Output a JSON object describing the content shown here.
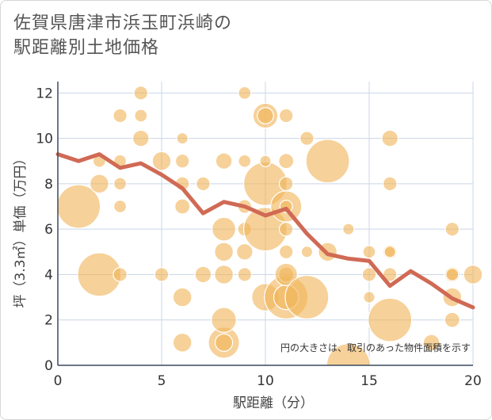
{
  "chart_data": {
    "type": "scatter",
    "title_lines": [
      "佐賀県唐津市浜玉町浜崎の",
      "駅距離別土地価格"
    ],
    "xlabel": "駅距離（分）",
    "ylabel": "坪（3.3㎡）単価（万円）",
    "note": "円の大きさは、取引のあった物件面積を示す",
    "xlim": [
      0,
      20
    ],
    "ylim": [
      0,
      12.5
    ],
    "x_ticks": [
      "0",
      "5",
      "10",
      "15",
      "20"
    ],
    "y_ticks": [
      "0",
      "2",
      "4",
      "6",
      "8",
      "10",
      "12"
    ],
    "grid": true,
    "colors": {
      "bubble": "#f0b55a",
      "line": "#d06a55",
      "grid": "#c9d7e6"
    },
    "bubbles": [
      {
        "x": 1,
        "y": 7,
        "s": 3
      },
      {
        "x": 2,
        "y": 4,
        "s": 3
      },
      {
        "x": 2,
        "y": 8,
        "s": 1
      },
      {
        "x": 2,
        "y": 9,
        "s": 0.5
      },
      {
        "x": 3,
        "y": 4,
        "s": 0.6
      },
      {
        "x": 3,
        "y": 7,
        "s": 0.5
      },
      {
        "x": 3,
        "y": 8,
        "s": 0.5
      },
      {
        "x": 3,
        "y": 9,
        "s": 0.5
      },
      {
        "x": 3,
        "y": 11,
        "s": 0.6
      },
      {
        "x": 4,
        "y": 10,
        "s": 0.8
      },
      {
        "x": 4,
        "y": 11,
        "s": 0.5
      },
      {
        "x": 4,
        "y": 12,
        "s": 0.6
      },
      {
        "x": 5,
        "y": 4,
        "s": 0.6
      },
      {
        "x": 5,
        "y": 9,
        "s": 1
      },
      {
        "x": 6,
        "y": 1,
        "s": 1
      },
      {
        "x": 6,
        "y": 3,
        "s": 1
      },
      {
        "x": 6,
        "y": 7,
        "s": 0.7
      },
      {
        "x": 6,
        "y": 8,
        "s": 0.6
      },
      {
        "x": 6,
        "y": 9,
        "s": 0.6
      },
      {
        "x": 6,
        "y": 10,
        "s": 0.4
      },
      {
        "x": 7,
        "y": 4,
        "s": 0.8
      },
      {
        "x": 7,
        "y": 8,
        "s": 0.6
      },
      {
        "x": 8,
        "y": 1,
        "s": 2
      },
      {
        "x": 8,
        "y": 1,
        "s": 0.9
      },
      {
        "x": 8,
        "y": 2,
        "s": 1.5
      },
      {
        "x": 8,
        "y": 4,
        "s": 1
      },
      {
        "x": 8,
        "y": 5,
        "s": 1
      },
      {
        "x": 8,
        "y": 6,
        "s": 1.4
      },
      {
        "x": 8,
        "y": 9,
        "s": 0.8
      },
      {
        "x": 9,
        "y": 4,
        "s": 0.6
      },
      {
        "x": 9,
        "y": 5,
        "s": 0.8
      },
      {
        "x": 9,
        "y": 6,
        "s": 0.6
      },
      {
        "x": 9,
        "y": 7,
        "s": 0.6
      },
      {
        "x": 9,
        "y": 9,
        "s": 0.5
      },
      {
        "x": 9,
        "y": 12,
        "s": 0.5
      },
      {
        "x": 10,
        "y": 3,
        "s": 1.7
      },
      {
        "x": 10,
        "y": 6,
        "s": 3
      },
      {
        "x": 10,
        "y": 8,
        "s": 3
      },
      {
        "x": 10,
        "y": 9,
        "s": 0.4
      },
      {
        "x": 10,
        "y": 11,
        "s": 1.5
      },
      {
        "x": 10,
        "y": 11,
        "s": 0.8
      },
      {
        "x": 11,
        "y": 3,
        "s": 3
      },
      {
        "x": 11,
        "y": 3,
        "s": 1.5
      },
      {
        "x": 11,
        "y": 4,
        "s": 0.7
      },
      {
        "x": 11,
        "y": 4,
        "s": 1.3
      },
      {
        "x": 11,
        "y": 5,
        "s": 0.6
      },
      {
        "x": 11,
        "y": 6,
        "s": 0.6
      },
      {
        "x": 11,
        "y": 7,
        "s": 2
      },
      {
        "x": 11,
        "y": 7,
        "s": 0.5
      },
      {
        "x": 11,
        "y": 8,
        "s": 0.6
      },
      {
        "x": 11,
        "y": 9,
        "s": 0.7
      },
      {
        "x": 11,
        "y": 11,
        "s": 0.6
      },
      {
        "x": 12,
        "y": 3,
        "s": 3
      },
      {
        "x": 12,
        "y": 5,
        "s": 0.4
      },
      {
        "x": 12,
        "y": 10,
        "s": 0.6
      },
      {
        "x": 13,
        "y": 5,
        "s": 1
      },
      {
        "x": 13,
        "y": 9,
        "s": 3
      },
      {
        "x": 14,
        "y": 0,
        "s": 3
      },
      {
        "x": 14,
        "y": 6,
        "s": 0.4
      },
      {
        "x": 15,
        "y": 3,
        "s": 0.4
      },
      {
        "x": 15,
        "y": 4,
        "s": 0.6
      },
      {
        "x": 15,
        "y": 5,
        "s": 0.5
      },
      {
        "x": 16,
        "y": 2,
        "s": 3
      },
      {
        "x": 16,
        "y": 4,
        "s": 0.6
      },
      {
        "x": 16,
        "y": 5,
        "s": 0.6
      },
      {
        "x": 16,
        "y": 5,
        "s": 0.4
      },
      {
        "x": 16,
        "y": 8,
        "s": 0.6
      },
      {
        "x": 16,
        "y": 10,
        "s": 0.8
      },
      {
        "x": 18,
        "y": 1,
        "s": 0.8
      },
      {
        "x": 19,
        "y": 2,
        "s": 0.7
      },
      {
        "x": 19,
        "y": 3,
        "s": 1
      },
      {
        "x": 19,
        "y": 4,
        "s": 0.7
      },
      {
        "x": 19,
        "y": 4,
        "s": 0.5
      },
      {
        "x": 19,
        "y": 6,
        "s": 0.6
      },
      {
        "x": 20,
        "y": 4,
        "s": 1
      }
    ],
    "trend": {
      "x": [
        0,
        1,
        2,
        3,
        4,
        5,
        6,
        7,
        8,
        9,
        10,
        11,
        12,
        13,
        14,
        15,
        16,
        17,
        18,
        19,
        20
      ],
      "y": [
        9.3,
        9.0,
        9.3,
        8.7,
        8.9,
        8.4,
        7.8,
        6.7,
        7.2,
        7.0,
        6.6,
        6.9,
        5.8,
        4.9,
        4.7,
        4.6,
        3.5,
        4.15,
        3.6,
        2.95,
        2.55
      ]
    }
  }
}
